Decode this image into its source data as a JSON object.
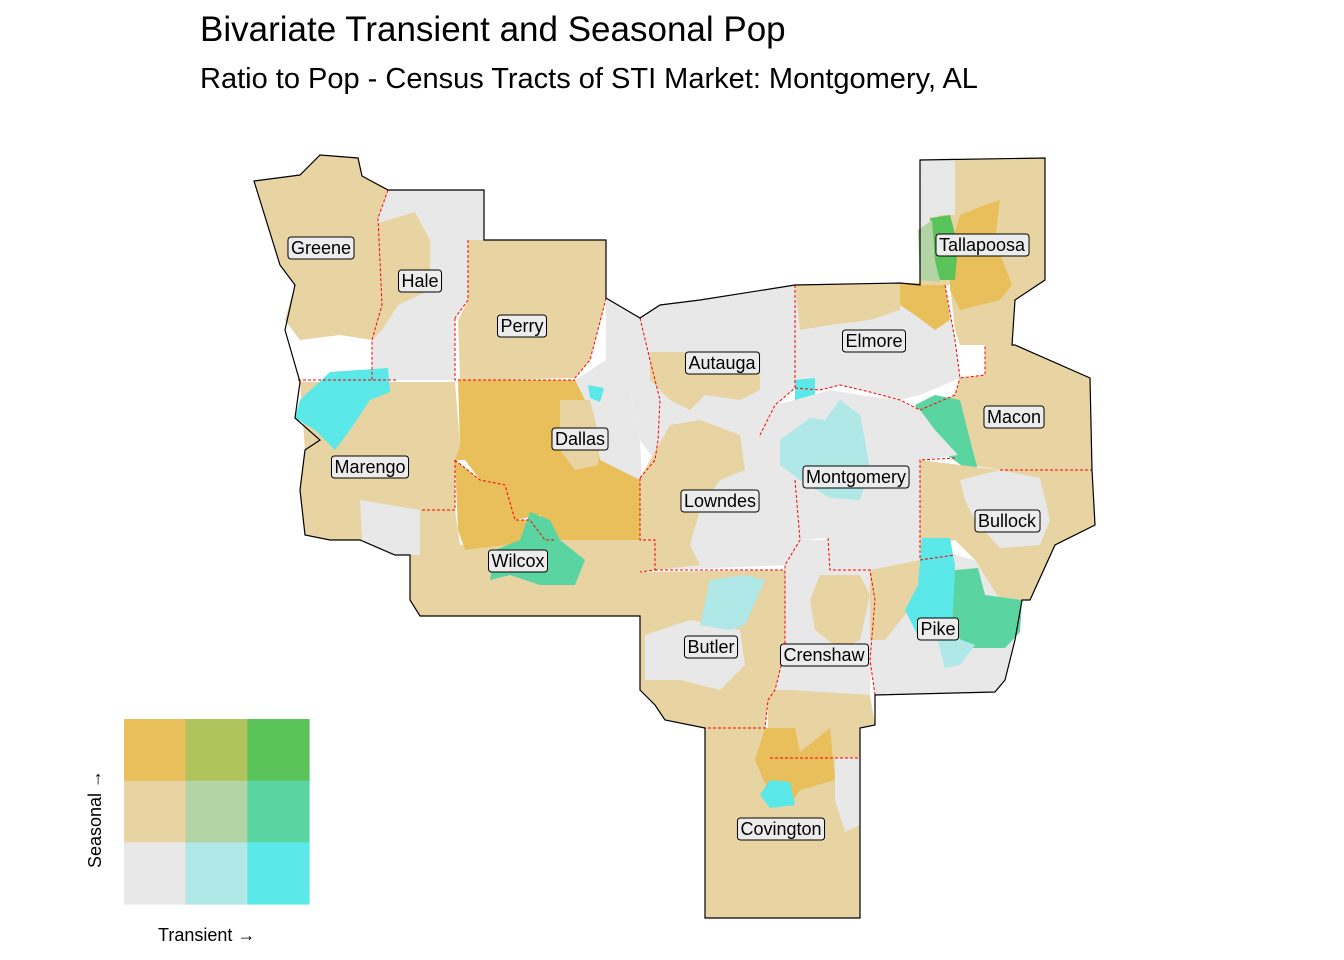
{
  "title": "Bivariate Transient and Seasonal Pop",
  "subtitle": "Ratio to Pop - Census Tracts of STI Market: Montgomery, AL",
  "legend": {
    "x_label": "Transient →",
    "y_label": "Seasonal →",
    "grid": [
      [
        "#e8bf5a",
        "#b0c35c",
        "#5ac45a"
      ],
      [
        "#e8d4a2",
        "#b3d4a4",
        "#5ad5a2"
      ],
      [
        "#e8e8e8",
        "#b0e7e7",
        "#5ae8e8"
      ]
    ]
  },
  "colors": {
    "background_tract": "#e8e8e8",
    "tan": "#e8d4a2",
    "gold": "#e8bf5a",
    "cyan": "#5ae8e8",
    "light_cyan": "#b0e7e7",
    "teal": "#5ad5a2",
    "green": "#5ac45a",
    "light_green": "#b3d4a4",
    "county_border": "#ff0000",
    "outline": "#000000"
  },
  "counties": [
    {
      "name": "Greene"
    },
    {
      "name": "Hale"
    },
    {
      "name": "Perry"
    },
    {
      "name": "Autauga"
    },
    {
      "name": "Elmore"
    },
    {
      "name": "Tallapoosa"
    },
    {
      "name": "Macon"
    },
    {
      "name": "Dallas"
    },
    {
      "name": "Marengo"
    },
    {
      "name": "Montgomery"
    },
    {
      "name": "Lowndes"
    },
    {
      "name": "Bullock"
    },
    {
      "name": "Wilcox"
    },
    {
      "name": "Butler"
    },
    {
      "name": "Crenshaw"
    },
    {
      "name": "Pike"
    },
    {
      "name": "Covington"
    }
  ]
}
